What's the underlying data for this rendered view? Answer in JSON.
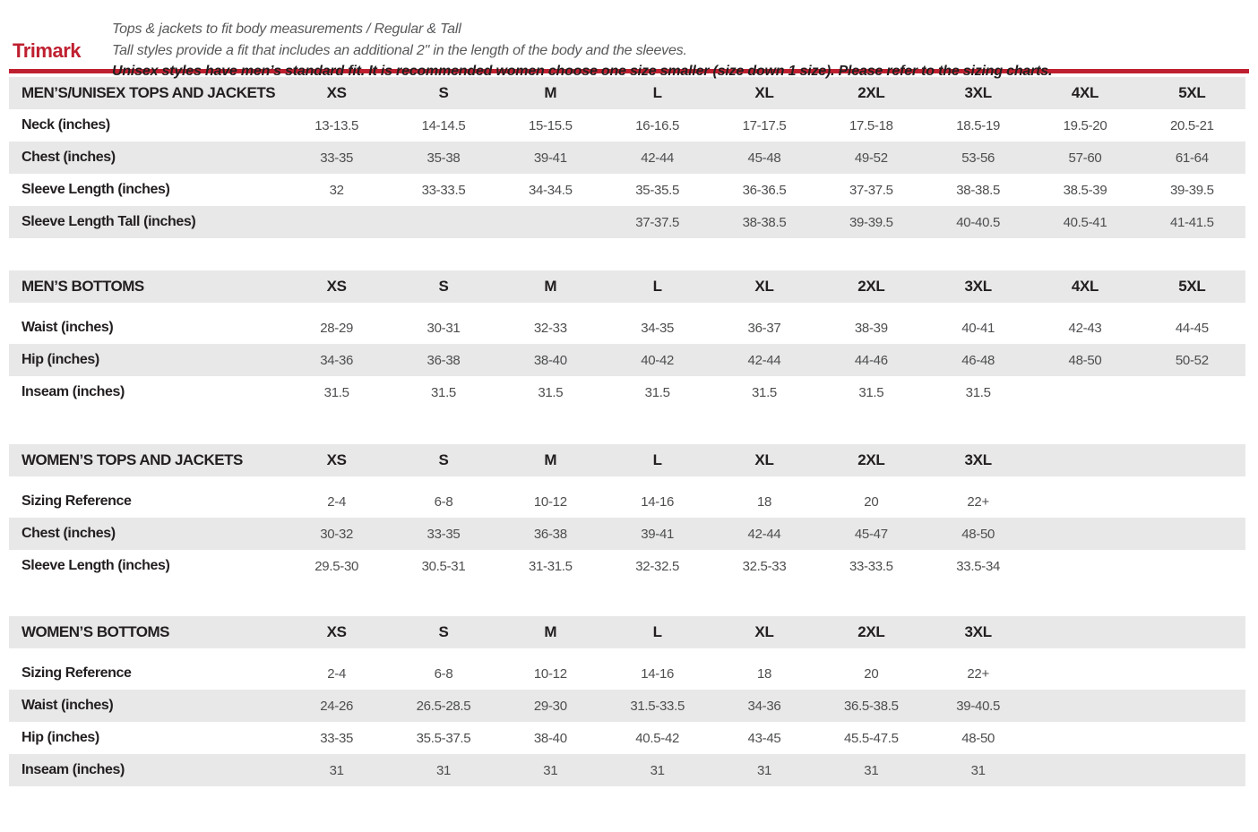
{
  "header": {
    "brand": "Trimark",
    "notes": [
      "Tops & jackets to fit body measurements / Regular & Tall",
      "Tall styles provide a fit that includes an additional 2\" in the length of the body and the sleeves.",
      "Unisex styles have men’s standard fit. It is recommended women choose one size smaller (size down 1 size).  Please refer to the sizing charts."
    ]
  },
  "colors": {
    "accent_red": "#bf2030",
    "row_gray": "#e8e8e8",
    "heading_text": "#231f20",
    "value_text": "#4d4e50"
  },
  "tables": [
    {
      "title": "MEN’S/UNISEX TOPS AND JACKETS",
      "sizes": [
        "XS",
        "S",
        "M",
        "L",
        "XL",
        "2XL",
        "3XL",
        "4XL",
        "5XL"
      ],
      "header_gap": false,
      "rows": [
        {
          "label": "Neck (inches)",
          "values": [
            "13-13.5",
            "14-14.5",
            "15-15.5",
            "16-16.5",
            "17-17.5",
            "17.5-18",
            "18.5-19",
            "19.5-20",
            "20.5-21"
          ]
        },
        {
          "label": "Chest (inches)",
          "values": [
            "33-35",
            "35-38",
            "39-41",
            "42-44",
            "45-48",
            "49-52",
            "53-56",
            "57-60",
            "61-64"
          ]
        },
        {
          "label": "Sleeve Length (inches)",
          "values": [
            "32",
            "33-33.5",
            "34-34.5",
            "35-35.5",
            "36-36.5",
            "37-37.5",
            "38-38.5",
            "38.5-39",
            "39-39.5"
          ]
        },
        {
          "label": "Sleeve Length Tall (inches)",
          "values": [
            "",
            "",
            "",
            "37-37.5",
            "38-38.5",
            "39-39.5",
            "40-40.5",
            "40.5-41",
            "41-41.5"
          ]
        }
      ]
    },
    {
      "title": "MEN’S BOTTOMS",
      "sizes": [
        "XS",
        "S",
        "M",
        "L",
        "XL",
        "2XL",
        "3XL",
        "4XL",
        "5XL"
      ],
      "header_gap": true,
      "rows": [
        {
          "label": "Waist (inches)",
          "values": [
            "28-29",
            "30-31",
            "32-33",
            "34-35",
            "36-37",
            "38-39",
            "40-41",
            "42-43",
            "44-45"
          ]
        },
        {
          "label": "Hip (inches)",
          "values": [
            "34-36",
            "36-38",
            "38-40",
            "40-42",
            "42-44",
            "44-46",
            "46-48",
            "48-50",
            "50-52"
          ]
        },
        {
          "label": "Inseam (inches)",
          "values": [
            "31.5",
            "31.5",
            "31.5",
            "31.5",
            "31.5",
            "31.5",
            "31.5",
            "",
            ""
          ]
        }
      ]
    },
    {
      "title": "WOMEN’S TOPS AND JACKETS",
      "sizes": [
        "XS",
        "S",
        "M",
        "L",
        "XL",
        "2XL",
        "3XL"
      ],
      "header_gap": true,
      "rows": [
        {
          "label": "Sizing Reference",
          "values": [
            "2-4",
            "6-8",
            "10-12",
            "14-16",
            "18",
            "20",
            "22+"
          ]
        },
        {
          "label": "Chest (inches)",
          "values": [
            "30-32",
            "33-35",
            "36-38",
            "39-41",
            "42-44",
            "45-47",
            "48-50"
          ]
        },
        {
          "label": "Sleeve Length (inches)",
          "values": [
            "29.5-30",
            "30.5-31",
            "31-31.5",
            "32-32.5",
            "32.5-33",
            "33-33.5",
            "33.5-34"
          ]
        }
      ]
    },
    {
      "title": "WOMEN’S BOTTOMS",
      "sizes": [
        "XS",
        "S",
        "M",
        "L",
        "XL",
        "2XL",
        "3XL"
      ],
      "header_gap": true,
      "rows": [
        {
          "label": "Sizing Reference",
          "values": [
            "2-4",
            "6-8",
            "10-12",
            "14-16",
            "18",
            "20",
            "22+"
          ]
        },
        {
          "label": "Waist (inches)",
          "values": [
            "24-26",
            "26.5-28.5",
            "29-30",
            "31.5-33.5",
            "34-36",
            "36.5-38.5",
            "39-40.5"
          ]
        },
        {
          "label": "Hip (inches)",
          "values": [
            "33-35",
            "35.5-37.5",
            "38-40",
            "40.5-42",
            "43-45",
            "45.5-47.5",
            "48-50"
          ]
        },
        {
          "label": "Inseam (inches)",
          "values": [
            "31",
            "31",
            "31",
            "31",
            "31",
            "31",
            "31"
          ]
        }
      ]
    }
  ]
}
